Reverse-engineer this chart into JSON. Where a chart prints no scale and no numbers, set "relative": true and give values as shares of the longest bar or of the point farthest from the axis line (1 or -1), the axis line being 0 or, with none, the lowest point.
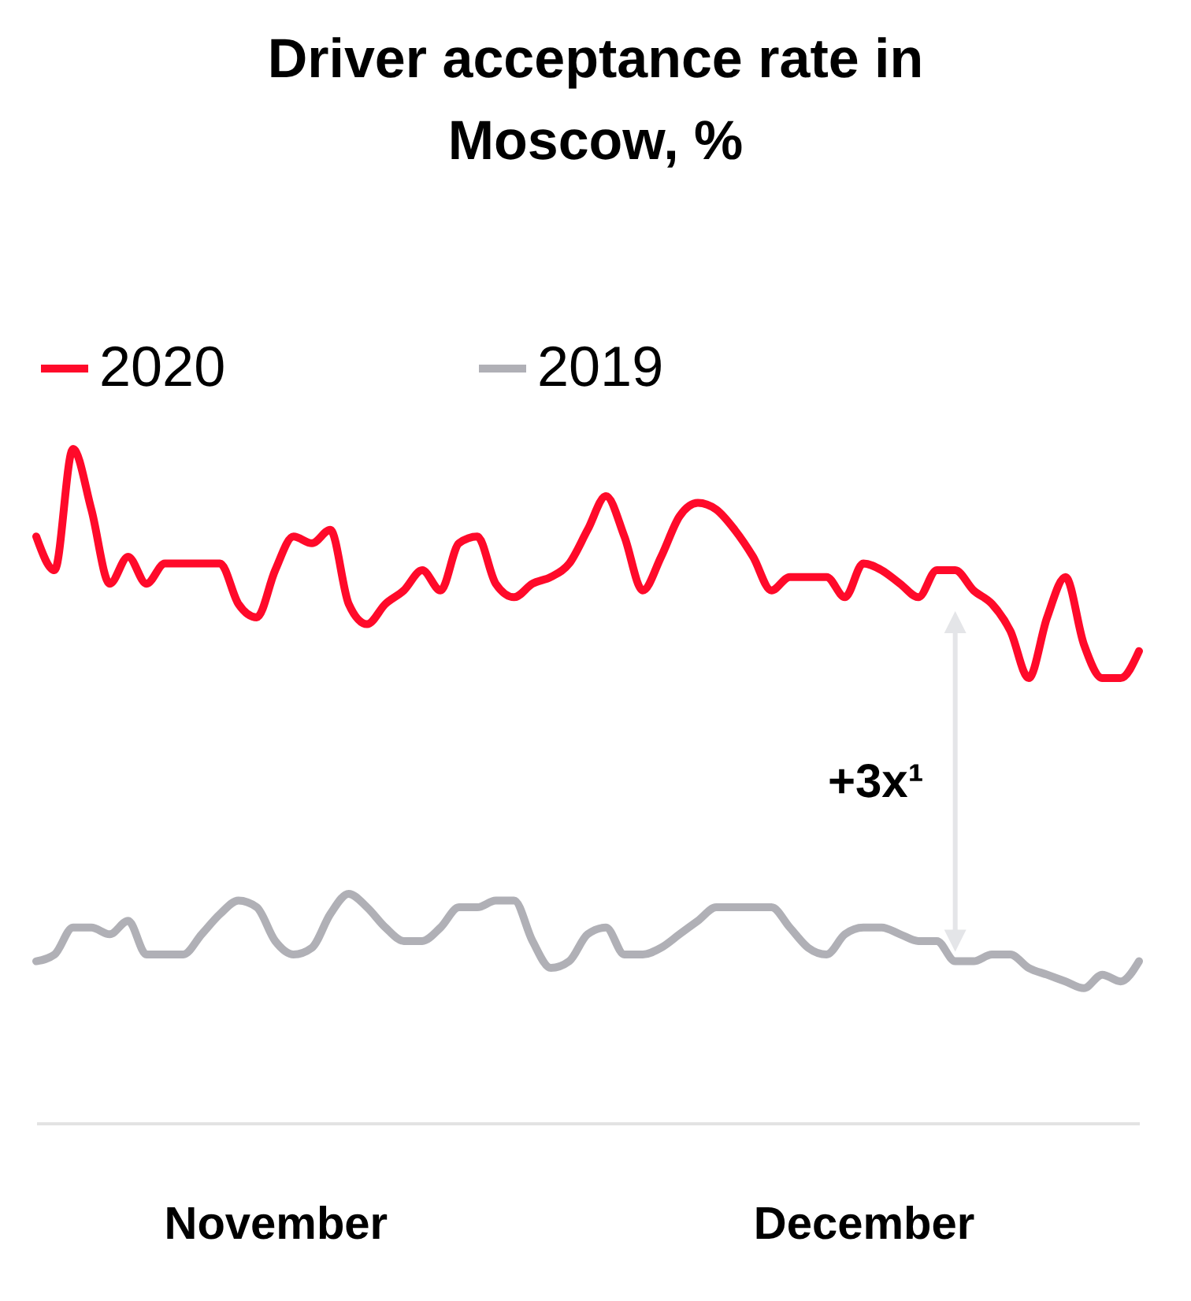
{
  "chart_data": {
    "type": "line",
    "title": "Driver acceptance rate in Moscow, %",
    "relative": true,
    "legend": "top",
    "line_style": "solid",
    "marker": "none",
    "grid": false,
    "categories": [
      null,
      null,
      null,
      null,
      null,
      null,
      null,
      null,
      null,
      null,
      null,
      null,
      null,
      "November",
      null,
      null,
      null,
      null,
      null,
      null,
      null,
      null,
      null,
      null,
      null,
      null,
      null,
      null,
      null,
      null,
      null,
      null,
      null,
      null,
      null,
      null,
      null,
      null,
      null,
      null,
      null,
      null,
      null,
      null,
      null,
      "December",
      null,
      null,
      null,
      null,
      null,
      null,
      null,
      null,
      null,
      null,
      null,
      null,
      null,
      null,
      null
    ],
    "series": [
      {
        "name": "2020",
        "color": "#ff0a2a",
        "values": [
          0.87,
          0.82,
          1.0,
          0.91,
          0.8,
          0.84,
          0.8,
          0.83,
          0.83,
          0.83,
          0.83,
          0.77,
          0.75,
          0.82,
          0.87,
          0.86,
          0.88,
          0.77,
          0.74,
          0.77,
          0.79,
          0.82,
          0.79,
          0.86,
          0.87,
          0.8,
          0.78,
          0.8,
          0.81,
          0.83,
          0.88,
          0.93,
          0.87,
          0.79,
          0.84,
          0.9,
          0.92,
          0.91,
          0.88,
          0.84,
          0.79,
          0.81,
          0.81,
          0.81,
          0.78,
          0.83,
          0.82,
          0.8,
          0.78,
          0.82,
          0.82,
          0.79,
          0.77,
          0.73,
          0.66,
          0.75,
          0.81,
          0.71,
          0.66,
          0.66,
          0.7
        ]
      },
      {
        "name": "2019",
        "color": "#b0b0b6",
        "values": [
          0.24,
          0.25,
          0.29,
          0.29,
          0.28,
          0.3,
          0.25,
          0.25,
          0.25,
          0.28,
          0.31,
          0.33,
          0.32,
          0.27,
          0.25,
          0.26,
          0.31,
          0.34,
          0.32,
          0.29,
          0.27,
          0.27,
          0.29,
          0.32,
          0.32,
          0.33,
          0.33,
          0.27,
          0.23,
          0.24,
          0.28,
          0.29,
          0.25,
          0.25,
          0.26,
          0.28,
          0.3,
          0.32,
          0.32,
          0.32,
          0.32,
          0.29,
          0.26,
          0.25,
          0.28,
          0.29,
          0.29,
          0.28,
          0.27,
          0.27,
          0.24,
          0.24,
          0.25,
          0.25,
          0.23,
          0.22,
          0.21,
          0.2,
          0.22,
          0.21,
          0.24
        ]
      }
    ],
    "annotations": [
      "+3x¹"
    ]
  }
}
